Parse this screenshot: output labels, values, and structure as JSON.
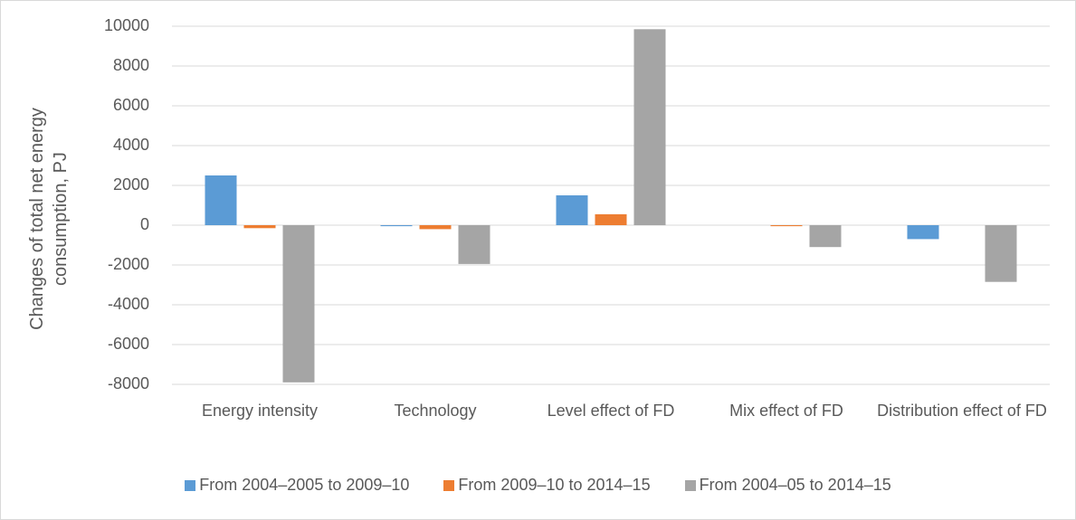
{
  "chart_data": {
    "type": "bar",
    "y_label": "Changes of total net energy consumption, PJ",
    "categories": [
      "Energy intensity",
      "Technology",
      "Level effect of FD",
      "Mix effect of FD",
      "Distribution  effect of FD"
    ],
    "series": [
      {
        "name": "From 2004–2005 to 2009–10",
        "color": "#5b9bd5",
        "values": [
          2500,
          -50,
          1500,
          0,
          -700
        ]
      },
      {
        "name": "From 2009–10 to 2014–15",
        "color": "#ed7d31",
        "values": [
          -150,
          -200,
          550,
          -50,
          0
        ]
      },
      {
        "name": "From 2004–05 to 2014–15",
        "color": "#a5a5a5",
        "values": [
          -7900,
          -1950,
          9850,
          -1100,
          -2850
        ]
      }
    ],
    "ylim": [
      -8000,
      10000
    ],
    "yticks": [
      -8000,
      -6000,
      -4000,
      -2000,
      0,
      2000,
      4000,
      6000,
      8000,
      10000
    ],
    "grid": true,
    "legend": "bottom"
  }
}
